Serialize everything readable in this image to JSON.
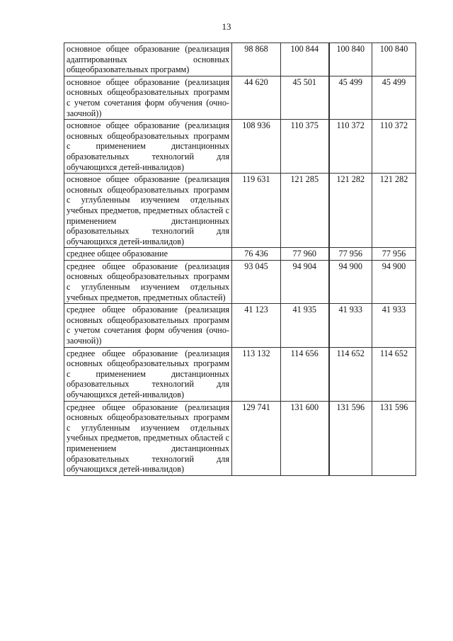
{
  "page_number": "13",
  "rows": [
    {
      "label": "основное общее образование (реализация адаптированных основных общеобразовательных программ)",
      "values": [
        "98 868",
        "100 844",
        "100 840",
        "100 840"
      ]
    },
    {
      "label": "основное общее образование (реализация основных общеобразовательных программ с учетом сочетания форм обучения (очно-заочной))",
      "values": [
        "44 620",
        "45 501",
        "45 499",
        "45 499"
      ]
    },
    {
      "label": "основное общее образование (реализация основных общеобразовательных программ с применением дистанционных образовательных технологий для обучающихся детей-инвалидов)",
      "values": [
        "108 936",
        "110 375",
        "110 372",
        "110 372"
      ]
    },
    {
      "label": "основное общее образование (реализация основных общеобразовательных программ с углубленным изучением отдельных учебных предметов, предметных областей с применением дистанционных образовательных технологий для обучающихся детей-инвалидов)",
      "values": [
        "119 631",
        "121 285",
        "121 282",
        "121 282"
      ]
    },
    {
      "label": "среднее общее образование",
      "values": [
        "76 436",
        "77 960",
        "77 956",
        "77 956"
      ]
    },
    {
      "label": "среднее общее образование (реализация основных общеобразовательных программ с углубленным изучением отдельных учебных предметов, предметных областей)",
      "values": [
        "93 045",
        "94 904",
        "94 900",
        "94 900"
      ]
    },
    {
      "label": "среднее общее образование (реализация основных общеобразовательных программ с учетом сочетания форм обучения (очно-заочной))",
      "values": [
        "41 123",
        "41 935",
        "41 933",
        "41 933"
      ]
    },
    {
      "label": "среднее общее образование (реализация основных общеобразовательных программ с применением дистанционных образовательных технологий для обучающихся детей-инвалидов)",
      "values": [
        "113 132",
        "114 656",
        "114 652",
        "114 652"
      ]
    },
    {
      "label": "среднее общее образование (реализация основных общеобразовательных программ с углубленным изучением отдельных учебных предметов, предметных областей с применением дистанционных образовательных технологий для обучающихся детей-инвалидов)",
      "values": [
        "129 741",
        "131 600",
        "131 596",
        "131 596"
      ]
    }
  ]
}
